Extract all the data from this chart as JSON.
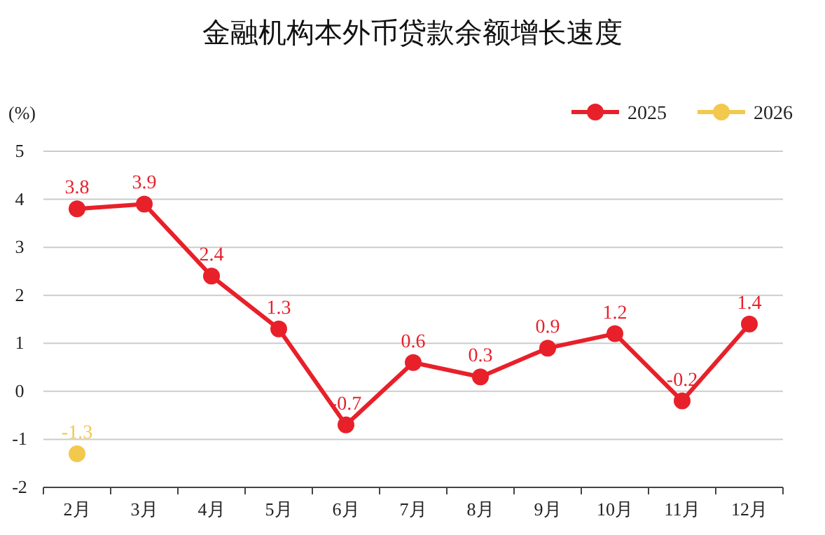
{
  "chart_data": {
    "type": "line",
    "title": "金融机构本外币贷款余额增长速度",
    "ylabel": "(%)",
    "categories": [
      "2月",
      "3月",
      "4月",
      "5月",
      "6月",
      "7月",
      "8月",
      "9月",
      "10月",
      "11月",
      "12月"
    ],
    "series": [
      {
        "name": "2025",
        "color": "#e8202a",
        "values": [
          3.8,
          3.9,
          2.4,
          1.3,
          -0.7,
          0.6,
          0.3,
          0.9,
          1.2,
          -0.2,
          1.4
        ]
      },
      {
        "name": "2026",
        "color": "#f2c94c",
        "values": [
          -1.3,
          null,
          null,
          null,
          null,
          null,
          null,
          null,
          null,
          null,
          null
        ]
      }
    ],
    "ylim": [
      -2,
      5
    ],
    "yticks": [
      -2,
      -1,
      0,
      1,
      2,
      3,
      4,
      5
    ],
    "grid": "y",
    "legend": "top right",
    "marker": "circle",
    "line_style": "solid",
    "data_labels": true
  }
}
